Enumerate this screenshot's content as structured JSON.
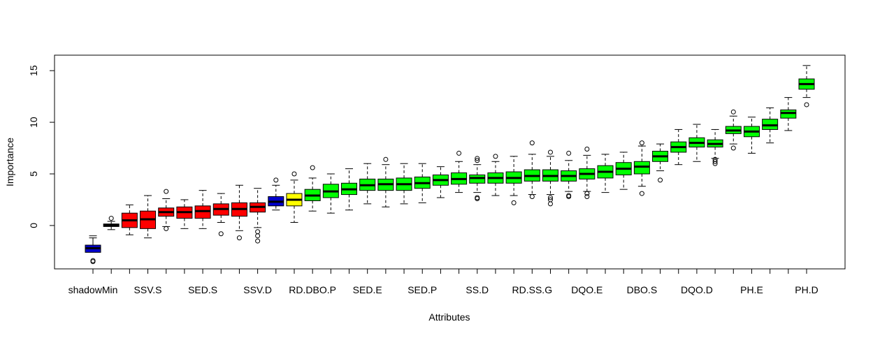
{
  "chart_data": {
    "type": "boxplot",
    "title": "",
    "xlabel": "Attributes",
    "ylabel": "Importance",
    "ylim": [
      -4.2,
      16.5
    ],
    "yticks": [
      0,
      5,
      10,
      15
    ],
    "grid": false,
    "legend": "none",
    "colors": {
      "shadow": "#0000cc",
      "rejected": "#ff0000",
      "tentative": "#ffff00",
      "confirmed": "#00ff00",
      "black": "#000000"
    },
    "x_tick_labels": [
      {
        "index": 1,
        "label": "shadowMin"
      },
      {
        "index": 4,
        "label": "SSV.S"
      },
      {
        "index": 7,
        "label": "SED.S"
      },
      {
        "index": 10,
        "label": "SSV.D"
      },
      {
        "index": 13,
        "label": "RD.DBO.P"
      },
      {
        "index": 16,
        "label": "SED.E"
      },
      {
        "index": 19,
        "label": "SED.P"
      },
      {
        "index": 22,
        "label": "SS.D"
      },
      {
        "index": 25,
        "label": "RD.SS.G"
      },
      {
        "index": 28,
        "label": "DQO.E"
      },
      {
        "index": 31,
        "label": "DBO.S"
      },
      {
        "index": 34,
        "label": "DQO.D"
      },
      {
        "index": 37,
        "label": "PH.E"
      },
      {
        "index": 40,
        "label": "PH.D"
      }
    ],
    "boxes": [
      {
        "status": "shadow",
        "lw": -1.2,
        "q1": -2.6,
        "med": -2.2,
        "q3": -1.9,
        "uw": -1.0,
        "out": [
          -3.4,
          -3.5
        ]
      },
      {
        "status": "black",
        "lw": -0.4,
        "q1": -0.1,
        "med": 0.0,
        "q3": 0.15,
        "uw": 0.4,
        "out": [
          0.7
        ]
      },
      {
        "status": "rejected",
        "lw": -0.9,
        "q1": -0.2,
        "med": 0.5,
        "q3": 1.2,
        "uw": 2.0,
        "out": []
      },
      {
        "status": "rejected",
        "lw": -1.2,
        "q1": -0.3,
        "med": 0.6,
        "q3": 1.4,
        "uw": 2.9,
        "out": []
      },
      {
        "status": "rejected",
        "lw": -0.1,
        "q1": 0.9,
        "med": 1.3,
        "q3": 1.7,
        "uw": 2.6,
        "out": [
          3.3,
          -0.3
        ]
      },
      {
        "status": "rejected",
        "lw": -0.3,
        "q1": 0.7,
        "med": 1.3,
        "q3": 1.8,
        "uw": 2.5,
        "out": []
      },
      {
        "status": "rejected",
        "lw": -0.3,
        "q1": 0.7,
        "med": 1.4,
        "q3": 1.9,
        "uw": 3.4,
        "out": []
      },
      {
        "status": "rejected",
        "lw": 0.3,
        "q1": 1.0,
        "med": 1.6,
        "q3": 2.1,
        "uw": 3.1,
        "out": [
          -0.8
        ]
      },
      {
        "status": "rejected",
        "lw": -0.5,
        "q1": 0.9,
        "med": 1.6,
        "q3": 2.2,
        "uw": 3.9,
        "out": [
          -1.2
        ]
      },
      {
        "status": "rejected",
        "lw": -0.2,
        "q1": 1.3,
        "med": 1.8,
        "q3": 2.2,
        "uw": 3.6,
        "out": [
          -0.6,
          -1.0,
          -1.5
        ]
      },
      {
        "status": "shadow",
        "lw": 1.5,
        "q1": 1.9,
        "med": 2.3,
        "q3": 2.8,
        "uw": 3.9,
        "out": [
          4.4
        ]
      },
      {
        "status": "tentative",
        "lw": 0.3,
        "q1": 1.9,
        "med": 2.5,
        "q3": 3.1,
        "uw": 4.4,
        "out": [
          5.0
        ]
      },
      {
        "status": "confirmed",
        "lw": 1.4,
        "q1": 2.4,
        "med": 2.9,
        "q3": 3.5,
        "uw": 4.6,
        "out": [
          5.6
        ]
      },
      {
        "status": "confirmed",
        "lw": 1.2,
        "q1": 2.7,
        "med": 3.3,
        "q3": 4.0,
        "uw": 5.0,
        "out": []
      },
      {
        "status": "confirmed",
        "lw": 1.5,
        "q1": 3.0,
        "med": 3.5,
        "q3": 4.1,
        "uw": 5.5,
        "out": []
      },
      {
        "status": "confirmed",
        "lw": 2.1,
        "q1": 3.4,
        "med": 3.9,
        "q3": 4.5,
        "uw": 6.0,
        "out": []
      },
      {
        "status": "confirmed",
        "lw": 1.8,
        "q1": 3.4,
        "med": 4.0,
        "q3": 4.5,
        "uw": 5.9,
        "out": [
          6.4
        ]
      },
      {
        "status": "confirmed",
        "lw": 2.1,
        "q1": 3.4,
        "med": 4.0,
        "q3": 4.6,
        "uw": 6.0,
        "out": []
      },
      {
        "status": "confirmed",
        "lw": 2.2,
        "q1": 3.6,
        "med": 4.1,
        "q3": 4.7,
        "uw": 6.0,
        "out": []
      },
      {
        "status": "confirmed",
        "lw": 2.7,
        "q1": 3.9,
        "med": 4.4,
        "q3": 4.9,
        "uw": 5.7,
        "out": []
      },
      {
        "status": "confirmed",
        "lw": 3.2,
        "q1": 4.0,
        "med": 4.5,
        "q3": 5.1,
        "uw": 6.2,
        "out": [
          7.0
        ]
      },
      {
        "status": "confirmed",
        "lw": 3.2,
        "q1": 4.1,
        "med": 4.6,
        "q3": 4.9,
        "uw": 5.9,
        "out": [
          6.3,
          6.5,
          2.7,
          2.6
        ]
      },
      {
        "status": "confirmed",
        "lw": 2.9,
        "q1": 4.1,
        "med": 4.6,
        "q3": 5.1,
        "uw": 6.2,
        "out": [
          6.7
        ]
      },
      {
        "status": "confirmed",
        "lw": 2.9,
        "q1": 4.1,
        "med": 4.6,
        "q3": 5.2,
        "uw": 6.7,
        "out": [
          2.2
        ]
      },
      {
        "status": "confirmed",
        "lw": 3.0,
        "q1": 4.3,
        "med": 4.8,
        "q3": 5.4,
        "uw": 6.9,
        "out": [
          8.0,
          2.8
        ]
      },
      {
        "status": "confirmed",
        "lw": 3.0,
        "q1": 4.3,
        "med": 4.8,
        "q3": 5.4,
        "uw": 6.7,
        "out": [
          7.1,
          2.7,
          2.5,
          2.1
        ]
      },
      {
        "status": "confirmed",
        "lw": 3.3,
        "q1": 4.3,
        "med": 4.8,
        "q3": 5.3,
        "uw": 6.3,
        "out": [
          7.0,
          2.9,
          2.8
        ]
      },
      {
        "status": "confirmed",
        "lw": 3.3,
        "q1": 4.5,
        "med": 5.0,
        "q3": 5.5,
        "uw": 6.8,
        "out": [
          7.4,
          3.1,
          2.8
        ]
      },
      {
        "status": "confirmed",
        "lw": 3.2,
        "q1": 4.6,
        "med": 5.2,
        "q3": 5.8,
        "uw": 6.9,
        "out": []
      },
      {
        "status": "confirmed",
        "lw": 3.5,
        "q1": 4.9,
        "med": 5.5,
        "q3": 6.1,
        "uw": 7.1,
        "out": []
      },
      {
        "status": "confirmed",
        "lw": 3.8,
        "q1": 5.0,
        "med": 5.7,
        "q3": 6.2,
        "uw": 7.7,
        "out": [
          8.0,
          3.1
        ]
      },
      {
        "status": "confirmed",
        "lw": 5.3,
        "q1": 6.2,
        "med": 6.7,
        "q3": 7.2,
        "uw": 7.9,
        "out": [
          4.4
        ]
      },
      {
        "status": "confirmed",
        "lw": 5.9,
        "q1": 7.1,
        "med": 7.6,
        "q3": 8.1,
        "uw": 9.3,
        "out": []
      },
      {
        "status": "confirmed",
        "lw": 6.2,
        "q1": 7.6,
        "med": 8.0,
        "q3": 8.5,
        "uw": 9.8,
        "out": []
      },
      {
        "status": "confirmed",
        "lw": 6.5,
        "q1": 7.6,
        "med": 7.9,
        "q3": 8.3,
        "uw": 9.3,
        "out": [
          6.4,
          6.2,
          6.0
        ]
      },
      {
        "status": "confirmed",
        "lw": 7.9,
        "q1": 8.9,
        "med": 9.2,
        "q3": 9.6,
        "uw": 10.6,
        "out": [
          11.0,
          7.5
        ]
      },
      {
        "status": "confirmed",
        "lw": 7.0,
        "q1": 8.6,
        "med": 9.1,
        "q3": 9.6,
        "uw": 10.5,
        "out": []
      },
      {
        "status": "confirmed",
        "lw": 8.0,
        "q1": 9.3,
        "med": 9.7,
        "q3": 10.3,
        "uw": 11.4,
        "out": []
      },
      {
        "status": "confirmed",
        "lw": 9.2,
        "q1": 10.4,
        "med": 10.9,
        "q3": 11.2,
        "uw": 12.4,
        "out": []
      },
      {
        "status": "confirmed",
        "lw": 12.4,
        "q1": 13.2,
        "med": 13.7,
        "q3": 14.2,
        "uw": 15.5,
        "out": [
          11.7
        ]
      }
    ]
  }
}
